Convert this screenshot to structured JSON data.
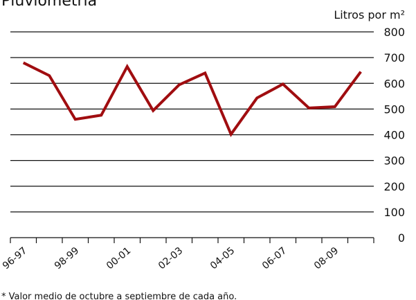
{
  "chart_data": {
    "type": "line",
    "title": "Pluviometría",
    "y_label": "Litros por m²",
    "footnote": "* Valor medio de octubre a septiembre de cada año.",
    "categories": [
      "96-97",
      null,
      "98-99",
      null,
      "00-01",
      null,
      "02-03",
      null,
      "04-05",
      null,
      "06-07",
      null,
      "08-09",
      null
    ],
    "series": [
      {
        "name": null,
        "color": "#a00d10",
        "values": [
          680,
          630,
          460,
          476,
          665,
          494,
          594,
          640,
          402,
          543,
          597,
          504,
          509,
          645
        ]
      }
    ],
    "ylim": [
      0,
      800
    ],
    "yticks": [
      0,
      100,
      200,
      300,
      400,
      500,
      600,
      700,
      800
    ],
    "grid": true
  }
}
